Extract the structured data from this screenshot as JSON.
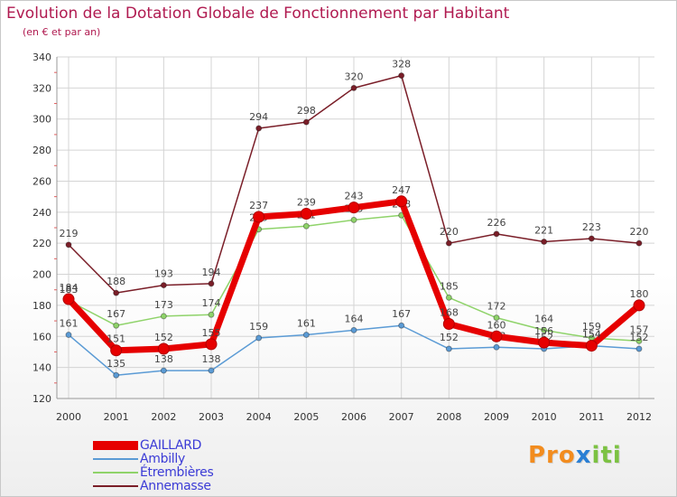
{
  "header": {
    "title": "Evolution de la Dotation Globale de Fonctionnement par Habitant",
    "subtitle": "(en € et par an)"
  },
  "logo": {
    "part1": "Pro",
    "part2": "x",
    "part3": "iti"
  },
  "chart_data": {
    "type": "line",
    "title": "Evolution de la Dotation Globale de Fonctionnement par Habitant",
    "subtitle": "(en € et par an)",
    "xlabel": "",
    "ylabel": "",
    "categories": [
      "2000",
      "2001",
      "2002",
      "2003",
      "2004",
      "2005",
      "2006",
      "2007",
      "2008",
      "2009",
      "2010",
      "2011",
      "2012"
    ],
    "ylim": [
      120,
      340
    ],
    "yticks": [
      120,
      140,
      160,
      180,
      200,
      220,
      240,
      260,
      280,
      300,
      320,
      340
    ],
    "grid": true,
    "legend_position": "bottom-left",
    "series": [
      {
        "name": "Annemasse",
        "color": "#7a1e28",
        "values": [
          219,
          188,
          193,
          194,
          294,
          298,
          320,
          328,
          220,
          226,
          221,
          223,
          220
        ]
      },
      {
        "name": "Étrembières",
        "color": "#8fd36a",
        "values": [
          183,
          167,
          173,
          174,
          229,
          231,
          235,
          238,
          185,
          172,
          164,
          159,
          157
        ]
      },
      {
        "name": "Ambilly",
        "color": "#5b9bd5",
        "values": [
          161,
          135,
          138,
          138,
          159,
          161,
          164,
          167,
          152,
          153,
          152,
          154,
          152
        ]
      },
      {
        "name": "GAILLARD",
        "color": "#e60000",
        "values": [
          184,
          151,
          152,
          155,
          237,
          239,
          243,
          247,
          168,
          160,
          156,
          154,
          180
        ]
      }
    ],
    "legend_order": [
      "GAILLARD",
      "Ambilly",
      "Étrembières",
      "Annemasse"
    ]
  },
  "legend": [
    {
      "name": "GAILLARD",
      "color": "#e60000"
    },
    {
      "name": "Ambilly",
      "color": "#5b9bd5"
    },
    {
      "name": "Étrembières",
      "color": "#8fd36a"
    },
    {
      "name": "Annemasse",
      "color": "#7a1e28"
    }
  ]
}
